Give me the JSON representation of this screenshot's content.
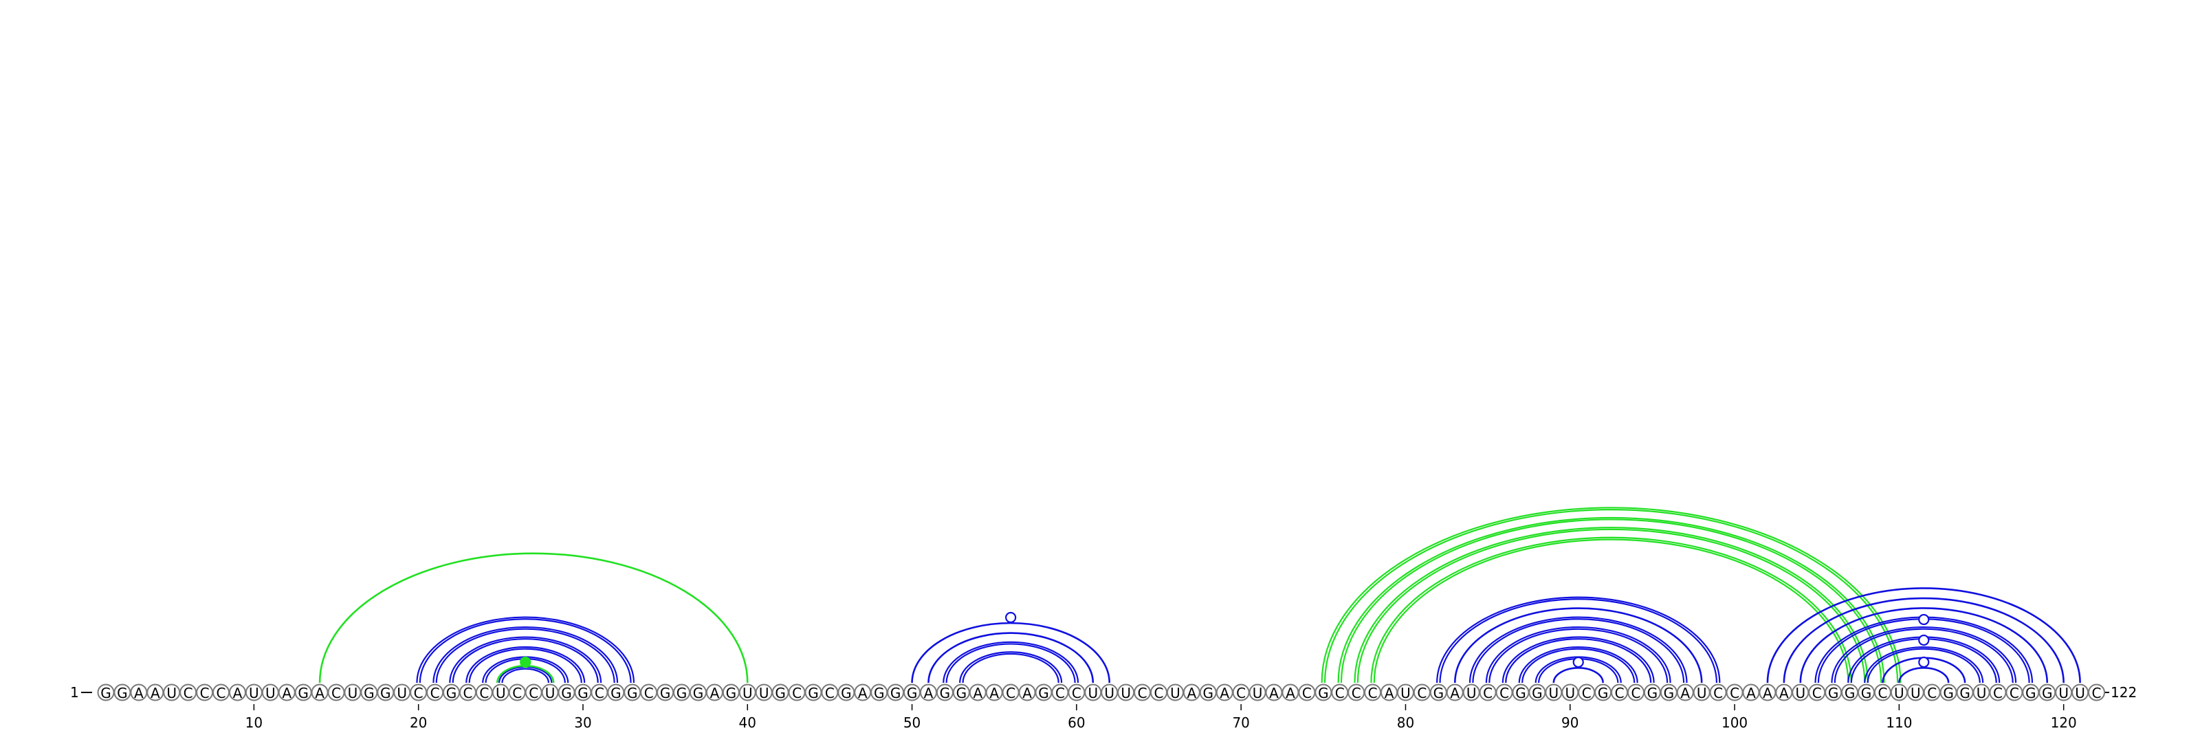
{
  "sequence": "GGAAUCCCAUUAGACUGGUCCGCCUCCUGGCGGCGGGAGUUGCGCGAGGGAGGAACAGCCUUUCCUAGACUAACGCCCAUCGAUCCGGUUCGCCGGAUCCAAAUCGGGCUUCGGUCCGGUUC",
  "start_label": "1",
  "end_label": "122",
  "ticks": [
    10,
    20,
    30,
    40,
    50,
    60,
    70,
    80,
    90,
    100,
    110,
    120
  ],
  "colors": {
    "blue": "#1010e0",
    "green": "#22e022",
    "circle_stroke": "#7a7a7a"
  },
  "arcs": [
    {
      "i": 14,
      "j": 40,
      "color": "green",
      "style": "single"
    },
    {
      "i": 20,
      "j": 33,
      "color": "blue",
      "style": "double"
    },
    {
      "i": 21,
      "j": 32,
      "color": "blue",
      "style": "double"
    },
    {
      "i": 22,
      "j": 31,
      "color": "blue",
      "style": "double"
    },
    {
      "i": 23,
      "j": 30,
      "color": "blue",
      "style": "double"
    },
    {
      "i": 24,
      "j": 29,
      "color": "blue",
      "style": "double"
    },
    {
      "i": 25,
      "j": 28,
      "color": "blue",
      "style": "double"
    },
    {
      "i": 25,
      "j": 28,
      "color": "green",
      "style": "single",
      "offset": -0.7
    },
    {
      "i": 50,
      "j": 62,
      "color": "blue",
      "style": "single"
    },
    {
      "i": 51,
      "j": 61,
      "color": "blue",
      "style": "single"
    },
    {
      "i": 52,
      "j": 60,
      "color": "blue",
      "style": "double"
    },
    {
      "i": 53,
      "j": 59,
      "color": "blue",
      "style": "double"
    },
    {
      "i": 75,
      "j": 110,
      "color": "green",
      "style": "double"
    },
    {
      "i": 76,
      "j": 109,
      "color": "green",
      "style": "double"
    },
    {
      "i": 77,
      "j": 108,
      "color": "green",
      "style": "double"
    },
    {
      "i": 78,
      "j": 107,
      "color": "green",
      "style": "double"
    },
    {
      "i": 82,
      "j": 99,
      "color": "blue",
      "style": "double"
    },
    {
      "i": 83,
      "j": 98,
      "color": "blue",
      "style": "single"
    },
    {
      "i": 84,
      "j": 97,
      "color": "blue",
      "style": "double"
    },
    {
      "i": 85,
      "j": 96,
      "color": "blue",
      "style": "double"
    },
    {
      "i": 86,
      "j": 95,
      "color": "blue",
      "style": "double"
    },
    {
      "i": 87,
      "j": 94,
      "color": "blue",
      "style": "double"
    },
    {
      "i": 88,
      "j": 93,
      "color": "blue",
      "style": "double"
    },
    {
      "i": 89,
      "j": 92,
      "color": "blue",
      "style": "single"
    },
    {
      "i": 102,
      "j": 121,
      "color": "blue",
      "style": "single"
    },
    {
      "i": 103,
      "j": 120,
      "color": "blue",
      "style": "single"
    },
    {
      "i": 104,
      "j": 119,
      "color": "blue",
      "style": "single"
    },
    {
      "i": 105,
      "j": 118,
      "color": "blue",
      "style": "double"
    },
    {
      "i": 106,
      "j": 117,
      "color": "blue",
      "style": "double"
    },
    {
      "i": 107,
      "j": 116,
      "color": "blue",
      "style": "double"
    },
    {
      "i": 108,
      "j": 115,
      "color": "blue",
      "style": "double"
    },
    {
      "i": 109,
      "j": 114,
      "color": "blue",
      "style": "single"
    },
    {
      "i": 110,
      "j": 113,
      "color": "blue",
      "style": "single"
    }
  ],
  "markers": [
    {
      "center": 26.5,
      "level": 1,
      "color": "green",
      "filled": true
    },
    {
      "center": 56,
      "level": 2,
      "color": "blue",
      "filled": false
    },
    {
      "center": 90.5,
      "level": 1,
      "color": "blue",
      "filled": false
    },
    {
      "center": 111.5,
      "level": 1,
      "color": "blue",
      "filled": false
    },
    {
      "center": 111.5,
      "level": 2,
      "color": "blue",
      "filled": false
    },
    {
      "center": 111.5,
      "level": 3,
      "color": "blue",
      "filled": false
    }
  ]
}
